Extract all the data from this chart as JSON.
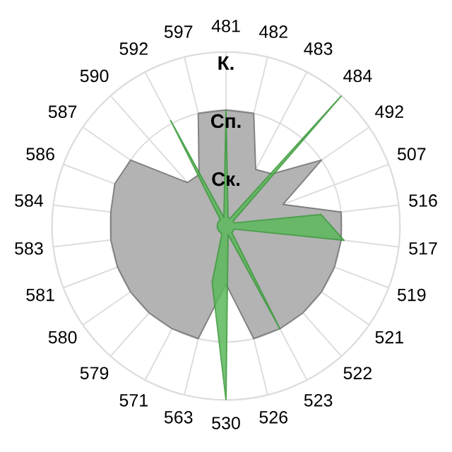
{
  "chart_data": {
    "type": "radar",
    "grid": true,
    "ylim": [
      0,
      3
    ],
    "categories": [
      "481",
      "482",
      "483",
      "484",
      "492",
      "507",
      "516",
      "517",
      "519",
      "521",
      "522",
      "523",
      "526",
      "530",
      "563",
      "571",
      "579",
      "580",
      "581",
      "583",
      "584",
      "586",
      "587",
      "590",
      "592",
      "597"
    ],
    "yticks": [
      {
        "value": 1,
        "label": "Ск."
      },
      {
        "value": 2,
        "label": "Сп."
      },
      {
        "value": 3,
        "label": "К."
      }
    ],
    "series": [
      {
        "color": "#b3b3b3",
        "values": [
          2,
          2,
          1.1,
          1.2,
          2,
          1.05,
          2,
          2,
          2,
          2,
          2,
          2,
          2,
          1,
          2,
          2,
          2,
          2,
          2,
          2,
          2,
          2.05,
          2,
          1,
          1,
          2
        ]
      },
      {
        "color": "#5cb85c",
        "values": [
          2,
          0.15,
          0.15,
          3,
          0.15,
          0.15,
          1.65,
          2.05,
          0.15,
          0.15,
          0.15,
          2,
          0.15,
          3,
          1,
          0.15,
          0.15,
          0.15,
          0.15,
          0.15,
          0.15,
          0.15,
          0.15,
          0.15,
          2.05,
          0.15
        ]
      }
    ]
  }
}
